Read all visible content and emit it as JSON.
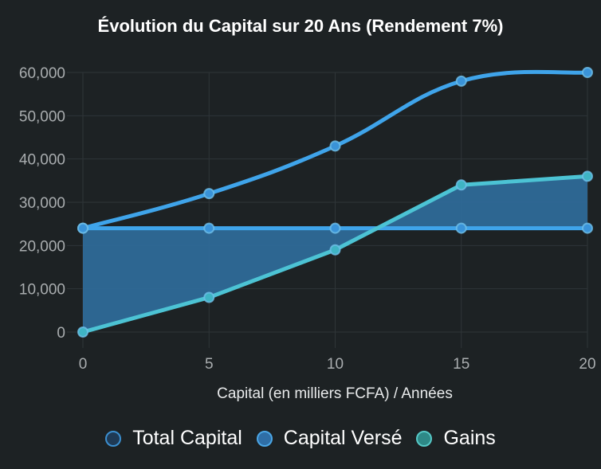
{
  "title": "Évolution du Capital sur 20 Ans (Rendement 7%)",
  "chart_data": {
    "type": "line",
    "title": "Évolution du Capital sur 20 Ans (Rendement 7%)",
    "xlabel": "Capital (en milliers FCFA) / Années",
    "ylabel": "",
    "x": [
      0,
      5,
      10,
      15,
      20
    ],
    "categories": [
      "0",
      "5",
      "10",
      "15",
      "20"
    ],
    "yticks": [
      "0",
      "10,000",
      "20,000",
      "30,000",
      "40,000",
      "50,000",
      "60,000"
    ],
    "ylim": [
      0,
      60000
    ],
    "grid": true,
    "legend_position": "bottom",
    "series": [
      {
        "name": "Total Capital",
        "values": [
          24000,
          32000,
          43000,
          58000,
          60000
        ],
        "color": "#3fa4ea",
        "fill": false
      },
      {
        "name": "Capital Versé",
        "values": [
          24000,
          24000,
          24000,
          24000,
          24000
        ],
        "color": "#3fa4ea",
        "fill": false
      },
      {
        "name": "Gains",
        "values": [
          0,
          8000,
          19000,
          34000,
          36000
        ],
        "color": "#4cc3d4",
        "fill": "to Capital Versé",
        "fill_color": "#2e6a98"
      }
    ]
  },
  "legend": [
    {
      "label": "Total Capital",
      "border": "#3b8fd0",
      "fill": "#1f3a55"
    },
    {
      "label": "Capital Versé",
      "border": "#4aa6e6",
      "fill": "#2f6ea6"
    },
    {
      "label": "Gains",
      "border": "#55c8c6",
      "fill": "#2e8987"
    }
  ],
  "colors": {
    "background": "#1d2224",
    "grid": "#2f3538",
    "tick_text": "#a9adaf"
  }
}
